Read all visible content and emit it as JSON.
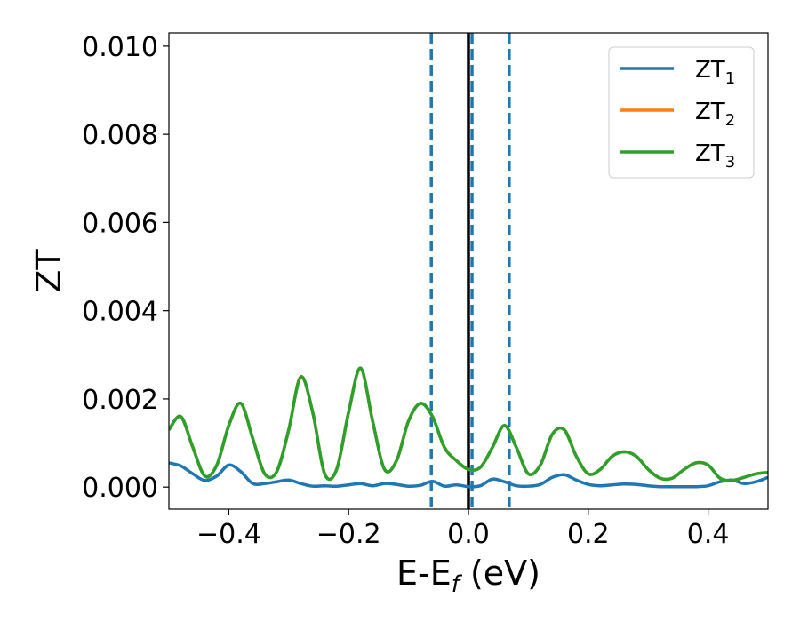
{
  "chart_data": {
    "type": "line",
    "xlabel": {
      "main": "E-E",
      "sub": "f",
      "rest": " (eV)"
    },
    "ylabel": "ZT",
    "xlim": [
      -0.5,
      0.5
    ],
    "ylim": [
      -0.0005,
      0.0103
    ],
    "xticks": [
      -0.4,
      -0.2,
      0.0,
      0.2,
      0.4
    ],
    "xtick_labels": [
      "−0.4",
      "−0.2",
      "0.0",
      "0.2",
      "0.4"
    ],
    "yticks": [
      0.0,
      0.002,
      0.004,
      0.006,
      0.008,
      0.01
    ],
    "ytick_labels": [
      "0.000",
      "0.002",
      "0.004",
      "0.006",
      "0.008",
      "0.010"
    ],
    "grid": false,
    "legend_position": "top-right",
    "vlines": [
      {
        "x": 0.0,
        "style": "solid",
        "color": "#000000"
      },
      {
        "x": -0.062,
        "style": "dashed",
        "color": "#1f77b4"
      },
      {
        "x": 0.006,
        "style": "dashed",
        "color": "#1f77b4"
      },
      {
        "x": 0.068,
        "style": "dashed",
        "color": "#1f77b4"
      }
    ],
    "series": [
      {
        "name": "ZT",
        "sub": "1",
        "color": "#1f77b4",
        "x": [
          -0.5,
          -0.48,
          -0.46,
          -0.44,
          -0.42,
          -0.4,
          -0.38,
          -0.36,
          -0.34,
          -0.32,
          -0.3,
          -0.28,
          -0.26,
          -0.24,
          -0.22,
          -0.2,
          -0.18,
          -0.16,
          -0.14,
          -0.12,
          -0.1,
          -0.08,
          -0.06,
          -0.04,
          -0.02,
          0.0,
          0.02,
          0.04,
          0.06,
          0.08,
          0.1,
          0.12,
          0.14,
          0.16,
          0.18,
          0.2,
          0.22,
          0.24,
          0.26,
          0.28,
          0.3,
          0.32,
          0.34,
          0.36,
          0.38,
          0.4,
          0.42,
          0.44,
          0.46,
          0.48,
          0.5
        ],
        "y": [
          0.00055,
          0.00048,
          0.0003,
          0.00015,
          0.00025,
          0.0005,
          0.00035,
          8e-05,
          8e-05,
          0.00012,
          0.00016,
          8e-05,
          2e-05,
          3e-05,
          2e-05,
          5e-05,
          8e-05,
          3e-05,
          8e-05,
          6e-05,
          2e-05,
          4e-05,
          0.00013,
          2e-05,
          5e-05,
          1e-05,
          3e-05,
          0.00018,
          0.00012,
          3e-05,
          2e-05,
          6e-05,
          0.00022,
          0.00028,
          0.00016,
          6e-05,
          3e-05,
          5e-05,
          7e-05,
          6e-05,
          3e-05,
          1e-05,
          1e-05,
          1e-05,
          1e-05,
          3e-05,
          0.00012,
          0.00016,
          8e-05,
          0.00012,
          0.00022
        ]
      },
      {
        "name": "ZT",
        "sub": "2",
        "color": "#ff7f0e",
        "x": [
          -0.5,
          -0.48,
          -0.46,
          -0.44,
          -0.42,
          -0.4,
          -0.38,
          -0.36,
          -0.34,
          -0.32,
          -0.3,
          -0.28,
          -0.26,
          -0.24,
          -0.22,
          -0.2,
          -0.18,
          -0.16,
          -0.14,
          -0.12,
          -0.1,
          -0.08,
          -0.06,
          -0.04,
          -0.02,
          0.0,
          0.02,
          0.04,
          0.06,
          0.08,
          0.1,
          0.12,
          0.14,
          0.16,
          0.18,
          0.2,
          0.22,
          0.24,
          0.26,
          0.28,
          0.3,
          0.32,
          0.34,
          0.36,
          0.38,
          0.4,
          0.42,
          0.44,
          0.46,
          0.48,
          0.5
        ],
        "y": [
          0.0013,
          0.0016,
          0.0009,
          0.00025,
          0.0005,
          0.0014,
          0.0019,
          0.0011,
          0.0003,
          0.00035,
          0.0013,
          0.0025,
          0.0017,
          0.0003,
          0.0004,
          0.0017,
          0.0027,
          0.0015,
          0.0004,
          0.0006,
          0.0015,
          0.0019,
          0.0016,
          0.0009,
          0.0006,
          0.0004,
          0.00045,
          0.0009,
          0.0014,
          0.0009,
          0.0003,
          0.0005,
          0.0012,
          0.0013,
          0.0007,
          0.0003,
          0.0004,
          0.0007,
          0.0008,
          0.0007,
          0.0004,
          0.0002,
          0.0002,
          0.0004,
          0.00055,
          0.0005,
          0.0002,
          0.00015,
          0.00022,
          0.0003,
          0.00033
        ]
      },
      {
        "name": "ZT",
        "sub": "3",
        "color": "#2ca02c",
        "x": [
          -0.5,
          -0.48,
          -0.46,
          -0.44,
          -0.42,
          -0.4,
          -0.38,
          -0.36,
          -0.34,
          -0.32,
          -0.3,
          -0.28,
          -0.26,
          -0.24,
          -0.22,
          -0.2,
          -0.18,
          -0.16,
          -0.14,
          -0.12,
          -0.1,
          -0.08,
          -0.06,
          -0.04,
          -0.02,
          0.0,
          0.02,
          0.04,
          0.06,
          0.08,
          0.1,
          0.12,
          0.14,
          0.16,
          0.18,
          0.2,
          0.22,
          0.24,
          0.26,
          0.28,
          0.3,
          0.32,
          0.34,
          0.36,
          0.38,
          0.4,
          0.42,
          0.44,
          0.46,
          0.48,
          0.5
        ],
        "y": [
          0.0013,
          0.0016,
          0.0009,
          0.00025,
          0.0005,
          0.0014,
          0.0019,
          0.0011,
          0.0003,
          0.00035,
          0.0013,
          0.0025,
          0.0017,
          0.0003,
          0.0004,
          0.0017,
          0.0027,
          0.0015,
          0.0004,
          0.0006,
          0.0015,
          0.0019,
          0.0016,
          0.0009,
          0.0006,
          0.0004,
          0.00045,
          0.0009,
          0.0014,
          0.0009,
          0.0003,
          0.0005,
          0.0012,
          0.0013,
          0.0007,
          0.0003,
          0.0004,
          0.0007,
          0.0008,
          0.0007,
          0.0004,
          0.0002,
          0.0002,
          0.0004,
          0.00055,
          0.0005,
          0.0002,
          0.00015,
          0.00022,
          0.0003,
          0.00033
        ]
      }
    ]
  }
}
